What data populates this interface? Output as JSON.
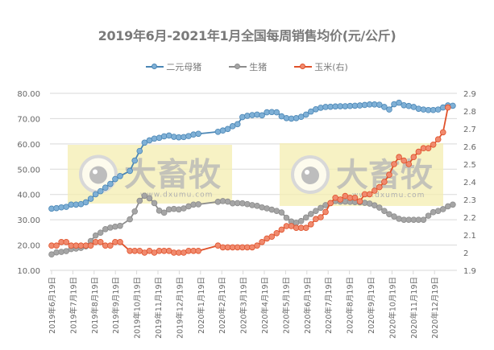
{
  "chart_data": {
    "type": "line",
    "title": "2019年6月-2021年1月全国每周销售均价(元/公斤)",
    "xlabel": "",
    "ylabel": "",
    "left_axis": {
      "min": 10,
      "max": 80,
      "step": 10,
      "ticks": [
        "10.00",
        "20.00",
        "30.00",
        "40.00",
        "50.00",
        "60.00",
        "70.00",
        "80.00"
      ]
    },
    "right_axis": {
      "min": 1.9,
      "max": 2.9,
      "step": 0.1,
      "ticks": [
        "1.9",
        "2",
        "2.1",
        "2.2",
        "2.3",
        "2.4",
        "2.5",
        "2.6",
        "2.7",
        "2.8",
        "2.9"
      ]
    },
    "grid": true,
    "legend_position": "top",
    "x_tick_labels": [
      "2019年6月19日",
      "2019年7月19日",
      "2019年8月19日",
      "2019年9月19日",
      "2019年10月19日",
      "2019年11月19日",
      "2019年12月19日",
      "2020年1月19日",
      "2020年2月19日",
      "2020年3月19日",
      "2020年4月19日",
      "2020年5月19日",
      "2020年6月19日",
      "2020年7月19日",
      "2020年8月19日",
      "2020年9月19日",
      "2020年10月19日",
      "2020年11月19日",
      "2020年12月19日"
    ],
    "series": [
      {
        "name": "二元母猪",
        "axis": "left",
        "color": "#4a86b5",
        "marker": "#7fb0d6",
        "points": [
          [
            0,
            34.4
          ],
          [
            0.23,
            34.6
          ],
          [
            0.46,
            34.9
          ],
          [
            0.69,
            35.1
          ],
          [
            0.92,
            36.0
          ],
          [
            1.15,
            36.0
          ],
          [
            1.38,
            36.2
          ],
          [
            1.61,
            36.9
          ],
          [
            1.84,
            38.3
          ],
          [
            2.07,
            40.1
          ],
          [
            2.3,
            41.3
          ],
          [
            2.53,
            42.7
          ],
          [
            2.76,
            44.2
          ],
          [
            2.99,
            46.1
          ],
          [
            3.22,
            47.3
          ],
          [
            3.68,
            49.3
          ],
          [
            3.91,
            53.4
          ],
          [
            4.14,
            57.2
          ],
          [
            4.37,
            60.5
          ],
          [
            4.6,
            61.4
          ],
          [
            4.83,
            62.1
          ],
          [
            5.06,
            62.4
          ],
          [
            5.29,
            63.0
          ],
          [
            5.52,
            63.3
          ],
          [
            5.75,
            62.8
          ],
          [
            5.98,
            62.6
          ],
          [
            6.21,
            62.7
          ],
          [
            6.44,
            63.1
          ],
          [
            6.67,
            63.7
          ],
          [
            6.9,
            64.0
          ],
          [
            7.82,
            64.8
          ],
          [
            8.05,
            65.3
          ],
          [
            8.28,
            65.9
          ],
          [
            8.51,
            67.0
          ],
          [
            8.74,
            67.8
          ],
          [
            8.97,
            70.6
          ],
          [
            9.2,
            71.1
          ],
          [
            9.43,
            71.4
          ],
          [
            9.66,
            71.6
          ],
          [
            9.89,
            71.3
          ],
          [
            10.12,
            72.5
          ],
          [
            10.35,
            72.6
          ],
          [
            10.58,
            72.5
          ],
          [
            10.81,
            70.9
          ],
          [
            11.04,
            70.2
          ],
          [
            11.27,
            70.0
          ],
          [
            11.5,
            70.2
          ],
          [
            11.73,
            70.7
          ],
          [
            11.96,
            71.6
          ],
          [
            12.19,
            72.8
          ],
          [
            12.42,
            73.7
          ],
          [
            12.65,
            74.3
          ],
          [
            12.88,
            74.6
          ],
          [
            13.11,
            74.7
          ],
          [
            13.34,
            74.8
          ],
          [
            13.57,
            74.9
          ],
          [
            13.8,
            74.9
          ],
          [
            14.03,
            75.0
          ],
          [
            14.26,
            75.1
          ],
          [
            14.49,
            75.2
          ],
          [
            14.72,
            75.4
          ],
          [
            14.95,
            75.6
          ],
          [
            15.18,
            75.6
          ],
          [
            15.41,
            75.5
          ],
          [
            15.64,
            74.6
          ],
          [
            15.87,
            73.6
          ],
          [
            16.1,
            75.7
          ],
          [
            16.33,
            76.3
          ],
          [
            16.56,
            75.3
          ],
          [
            16.79,
            75.0
          ],
          [
            17.02,
            74.6
          ],
          [
            17.25,
            73.9
          ],
          [
            17.48,
            73.6
          ],
          [
            17.71,
            73.4
          ],
          [
            17.94,
            73.4
          ],
          [
            18.17,
            73.6
          ],
          [
            18.4,
            74.4
          ],
          [
            18.63,
            75.2
          ],
          [
            18.86,
            75.1
          ]
        ]
      },
      {
        "name": "生猪",
        "axis": "left",
        "color": "#8c8c8c",
        "marker": "#a5a5a5",
        "points": [
          [
            0,
            16.3
          ],
          [
            0.23,
            17.1
          ],
          [
            0.46,
            17.3
          ],
          [
            0.69,
            17.6
          ],
          [
            0.92,
            18.4
          ],
          [
            1.15,
            18.6
          ],
          [
            1.38,
            18.9
          ],
          [
            1.61,
            19.5
          ],
          [
            1.84,
            21.6
          ],
          [
            2.07,
            23.8
          ],
          [
            2.3,
            24.9
          ],
          [
            2.53,
            26.3
          ],
          [
            2.76,
            26.9
          ],
          [
            2.99,
            27.3
          ],
          [
            3.22,
            27.6
          ],
          [
            3.68,
            30.2
          ],
          [
            3.91,
            33.3
          ],
          [
            4.14,
            37.5
          ],
          [
            4.37,
            39.5
          ],
          [
            4.6,
            38.5
          ],
          [
            4.83,
            36.6
          ],
          [
            5.06,
            33.6
          ],
          [
            5.29,
            32.8
          ],
          [
            5.52,
            34.1
          ],
          [
            5.75,
            34.3
          ],
          [
            5.98,
            34.1
          ],
          [
            6.21,
            34.5
          ],
          [
            6.44,
            35.3
          ],
          [
            6.67,
            36.0
          ],
          [
            6.9,
            36.1
          ],
          [
            7.82,
            37.1
          ],
          [
            8.05,
            37.4
          ],
          [
            8.28,
            37.2
          ],
          [
            8.51,
            36.5
          ],
          [
            8.74,
            36.6
          ],
          [
            8.97,
            36.5
          ],
          [
            9.2,
            36.2
          ],
          [
            9.43,
            35.8
          ],
          [
            9.66,
            35.5
          ],
          [
            9.89,
            34.9
          ],
          [
            10.12,
            34.5
          ],
          [
            10.35,
            34.0
          ],
          [
            10.58,
            33.5
          ],
          [
            10.81,
            32.9
          ],
          [
            11.04,
            30.8
          ],
          [
            11.27,
            29.3
          ],
          [
            11.5,
            28.8
          ],
          [
            11.73,
            29.5
          ],
          [
            11.96,
            30.9
          ],
          [
            12.19,
            32.3
          ],
          [
            12.42,
            33.5
          ],
          [
            12.65,
            34.7
          ],
          [
            12.88,
            35.8
          ],
          [
            13.11,
            36.6
          ],
          [
            13.34,
            37.4
          ],
          [
            13.57,
            37.2
          ],
          [
            13.8,
            37.2
          ],
          [
            14.03,
            37.1
          ],
          [
            14.26,
            37.0
          ],
          [
            14.49,
            36.9
          ],
          [
            14.72,
            36.7
          ],
          [
            14.95,
            36.4
          ],
          [
            15.18,
            35.7
          ],
          [
            15.41,
            34.8
          ],
          [
            15.64,
            33.5
          ],
          [
            15.87,
            32.2
          ],
          [
            16.1,
            31.3
          ],
          [
            16.33,
            30.4
          ],
          [
            16.56,
            30.0
          ],
          [
            16.79,
            30.0
          ],
          [
            17.02,
            30.0
          ],
          [
            17.25,
            30.0
          ],
          [
            17.48,
            30.0
          ],
          [
            17.71,
            31.6
          ],
          [
            17.94,
            33.0
          ],
          [
            18.17,
            33.5
          ],
          [
            18.4,
            34.2
          ],
          [
            18.63,
            35.3
          ],
          [
            18.86,
            36.0
          ]
        ]
      },
      {
        "name": "玉米(右)",
        "axis": "right",
        "color": "#e0512a",
        "marker": "#f08a6e",
        "points": [
          [
            0,
            2.04
          ],
          [
            0.23,
            2.04
          ],
          [
            0.46,
            2.06
          ],
          [
            0.69,
            2.06
          ],
          [
            0.92,
            2.04
          ],
          [
            1.15,
            2.04
          ],
          [
            1.38,
            2.04
          ],
          [
            1.61,
            2.04
          ],
          [
            1.84,
            2.04
          ],
          [
            2.07,
            2.06
          ],
          [
            2.3,
            2.06
          ],
          [
            2.53,
            2.04
          ],
          [
            2.76,
            2.04
          ],
          [
            2.99,
            2.06
          ],
          [
            3.22,
            2.06
          ],
          [
            3.68,
            2.01
          ],
          [
            3.91,
            2.01
          ],
          [
            4.14,
            2.01
          ],
          [
            4.37,
            2.0
          ],
          [
            4.6,
            2.01
          ],
          [
            4.83,
            2.0
          ],
          [
            5.06,
            2.01
          ],
          [
            5.29,
            2.01
          ],
          [
            5.52,
            2.01
          ],
          [
            5.75,
            2.0
          ],
          [
            5.98,
            2.0
          ],
          [
            6.21,
            2.0
          ],
          [
            6.44,
            2.01
          ],
          [
            6.67,
            2.01
          ],
          [
            6.9,
            2.01
          ],
          [
            7.82,
            2.04
          ],
          [
            8.05,
            2.03
          ],
          [
            8.28,
            2.03
          ],
          [
            8.51,
            2.03
          ],
          [
            8.74,
            2.03
          ],
          [
            8.97,
            2.03
          ],
          [
            9.2,
            2.03
          ],
          [
            9.43,
            2.03
          ],
          [
            9.66,
            2.04
          ],
          [
            9.89,
            2.06
          ],
          [
            10.12,
            2.08
          ],
          [
            10.35,
            2.09
          ],
          [
            10.58,
            2.11
          ],
          [
            10.81,
            2.13
          ],
          [
            11.04,
            2.15
          ],
          [
            11.27,
            2.15
          ],
          [
            11.5,
            2.14
          ],
          [
            11.73,
            2.14
          ],
          [
            11.96,
            2.14
          ],
          [
            12.19,
            2.16
          ],
          [
            12.42,
            2.19
          ],
          [
            12.65,
            2.2
          ],
          [
            12.88,
            2.23
          ],
          [
            13.11,
            2.28
          ],
          [
            13.34,
            2.31
          ],
          [
            13.57,
            2.3
          ],
          [
            13.8,
            2.32
          ],
          [
            14.03,
            2.31
          ],
          [
            14.26,
            2.31
          ],
          [
            14.49,
            2.29
          ],
          [
            14.72,
            2.33
          ],
          [
            14.95,
            2.33
          ],
          [
            15.18,
            2.35
          ],
          [
            15.41,
            2.37
          ],
          [
            15.64,
            2.4
          ],
          [
            15.87,
            2.44
          ],
          [
            16.1,
            2.5
          ],
          [
            16.33,
            2.54
          ],
          [
            16.56,
            2.52
          ],
          [
            16.79,
            2.5
          ],
          [
            17.02,
            2.54
          ],
          [
            17.25,
            2.57
          ],
          [
            17.48,
            2.59
          ],
          [
            17.71,
            2.59
          ],
          [
            17.94,
            2.61
          ],
          [
            18.17,
            2.64
          ],
          [
            18.4,
            2.68
          ],
          [
            18.63,
            2.82
          ]
        ]
      }
    ]
  },
  "legend": {
    "items": [
      {
        "label": "二元母猪",
        "line": "#4a86b5",
        "dot": "#7fb0d6"
      },
      {
        "label": "生猪",
        "line": "#8c8c8c",
        "dot": "#a5a5a5"
      },
      {
        "label": "玉米(右)",
        "line": "#e0512a",
        "dot": "#f08a6e"
      }
    ]
  },
  "watermark": {
    "text": "大畜牧",
    "url_text": "www.dxumu.com"
  }
}
